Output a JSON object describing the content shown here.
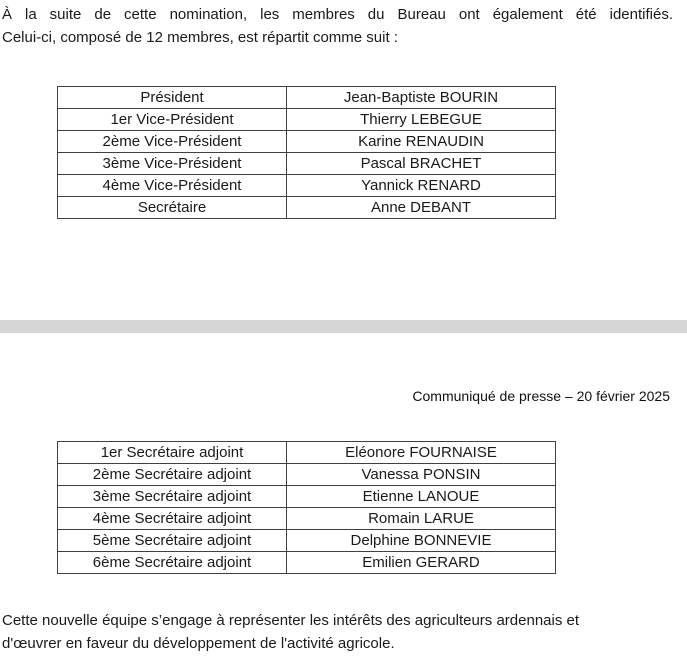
{
  "document": {
    "intro": {
      "line1": "À la suite de cette nomination, les membres du Bureau ont également été identifiés.",
      "line2": "Celui-ci, composé de 12 membres, est répartit comme suit :"
    },
    "press_release_line": "Communiqué de presse – 20 février 2025",
    "tables": [
      {
        "title": "bureau-members-principaux",
        "rows": [
          {
            "role": "Président",
            "name": "Jean-Baptiste BOURIN"
          },
          {
            "role": "1er Vice-Président",
            "name": "Thierry LEBEGUE"
          },
          {
            "role": "2ème Vice-Président",
            "name": "Karine RENAUDIN"
          },
          {
            "role": "3ème Vice-Président",
            "name": "Pascal BRACHET"
          },
          {
            "role": "4ème Vice-Président",
            "name": "Yannick RENARD"
          },
          {
            "role": "Secrétaire",
            "name": "Anne DEBANT"
          }
        ]
      },
      {
        "title": "bureau-secretaires-adjoints",
        "rows": [
          {
            "role": "1er Secrétaire adjoint",
            "name": "Eléonore FOURNAISE"
          },
          {
            "role": "2ème Secrétaire adjoint",
            "name": "Vanessa PONSIN"
          },
          {
            "role": "3ème Secrétaire adjoint",
            "name": "Etienne LANOUE"
          },
          {
            "role": "4ème Secrétaire adjoint",
            "name": "Romain LARUE"
          },
          {
            "role": "5ème Secrétaire adjoint",
            "name": "Delphine BONNEVIE"
          },
          {
            "role": "6ème Secrétaire adjoint",
            "name": "Emilien GERARD"
          }
        ]
      }
    ],
    "closing": {
      "line1": "Cette nouvelle équipe s’engage à représenter les intérêts des agriculteurs ardennais et",
      "line2": "d'œuvrer en faveur du développement de l'activité agricole."
    },
    "colors": {
      "text": "#1a1a1a",
      "table_border": "#404040",
      "page_break_band": "#d6d6d7",
      "background": "#ffffff"
    }
  }
}
